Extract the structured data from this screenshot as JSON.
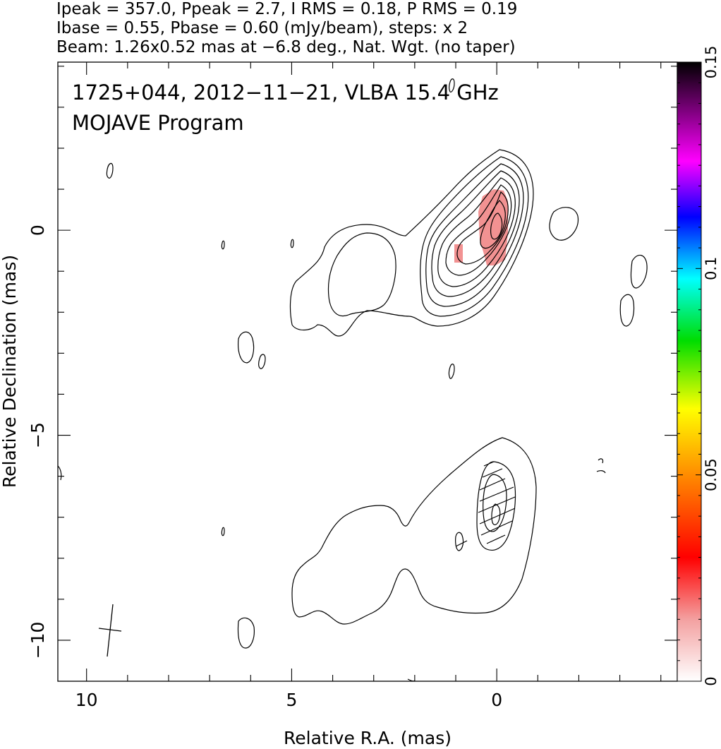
{
  "header": {
    "line1": "Ipeak = 357.0, Ppeak = 2.7, I RMS = 0.18, P RMS = 0.19",
    "line2": "Ibase = 0.55, Pbase = 0.60 (mJy/beam), steps: x 2",
    "line3": "Beam: 1.26x0.52 mas at −6.8 deg., Nat. Wgt. (no taper)"
  },
  "annotations": {
    "source": "1725+044, 2012−11−21, VLBA 15.4 GHz",
    "program": "MOJAVE Program"
  },
  "chart_data": {
    "type": "contour",
    "title": "",
    "xlabel": "Relative R.A. (mas)",
    "ylabel": "Relative Declination (mas)",
    "xlim": [
      10.7,
      -4.4
    ],
    "ylim": [
      -11.0,
      4.1
    ],
    "x_ticks": [
      10,
      5,
      0
    ],
    "y_ticks": [
      0,
      -5,
      -10
    ],
    "x_tick_labels": [
      "10",
      "5",
      "0"
    ],
    "y_tick_labels": [
      "0",
      "−5",
      "−10"
    ],
    "colorbar": {
      "range": [
        0,
        0.15
      ],
      "ticks": [
        0,
        0.05,
        0.1,
        0.15
      ],
      "tick_labels": [
        "0",
        "0.05",
        "0.1",
        "0.15"
      ]
    },
    "panels": [
      {
        "name": "total intensity",
        "center": [
          0,
          0
        ],
        "peak_position": [
          0,
          0
        ],
        "contour_count": 9,
        "pixel_overlay_color": "#f08080"
      },
      {
        "name": "linear polarization",
        "center": [
          0,
          -6.5
        ],
        "peak_position": [
          0,
          -6.9
        ],
        "contour_count": 3,
        "evpa_ticks": true
      }
    ],
    "beam": {
      "position": [
        9.5,
        -9.8
      ],
      "major_mas": 1.26,
      "minor_mas": 0.52,
      "pa_deg": -6.8
    }
  },
  "colors": {
    "overlay": "#f08080",
    "axes": "#000000"
  }
}
